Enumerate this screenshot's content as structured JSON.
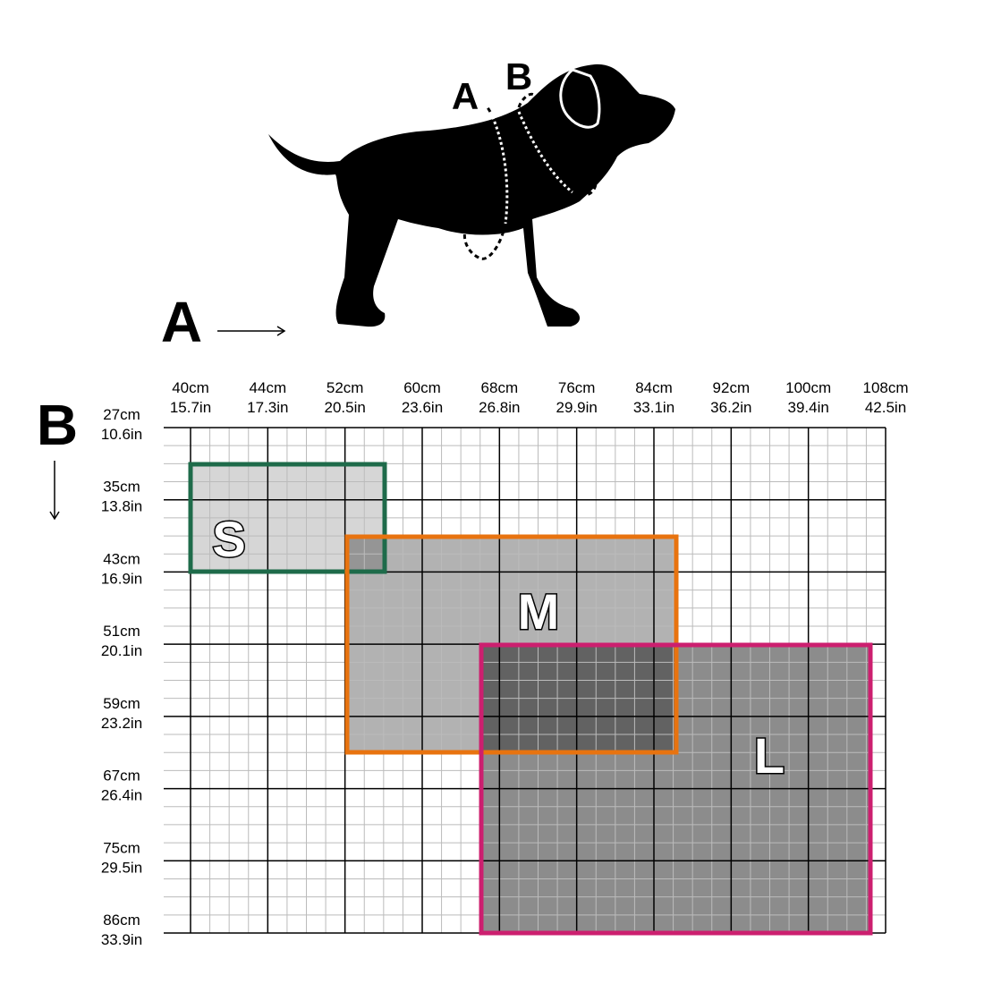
{
  "dog_labels": {
    "a": "A",
    "b": "B"
  },
  "axes": {
    "x": {
      "label": "A",
      "ticks": [
        {
          "cm": "40cm",
          "in": "15.7in"
        },
        {
          "cm": "44cm",
          "in": "17.3in"
        },
        {
          "cm": "52cm",
          "in": "20.5in"
        },
        {
          "cm": "60cm",
          "in": "23.6in"
        },
        {
          "cm": "68cm",
          "in": "26.8in"
        },
        {
          "cm": "76cm",
          "in": "29.9in"
        },
        {
          "cm": "84cm",
          "in": "33.1in"
        },
        {
          "cm": "92cm",
          "in": "36.2in"
        },
        {
          "cm": "100cm",
          "in": "39.4in"
        },
        {
          "cm": "108cm",
          "in": "42.5in"
        }
      ]
    },
    "y": {
      "label": "B",
      "ticks": [
        {
          "cm": "27cm",
          "in": "10.6in"
        },
        {
          "cm": "35cm",
          "in": "13.8in"
        },
        {
          "cm": "43cm",
          "in": "16.9in"
        },
        {
          "cm": "51cm",
          "in": "20.1in"
        },
        {
          "cm": "59cm",
          "in": "23.2in"
        },
        {
          "cm": "67cm",
          "in": "26.4in"
        },
        {
          "cm": "75cm",
          "in": "29.5in"
        },
        {
          "cm": "86cm",
          "in": "33.9in"
        }
      ]
    }
  },
  "sizes": [
    "S",
    "M",
    "L"
  ]
}
